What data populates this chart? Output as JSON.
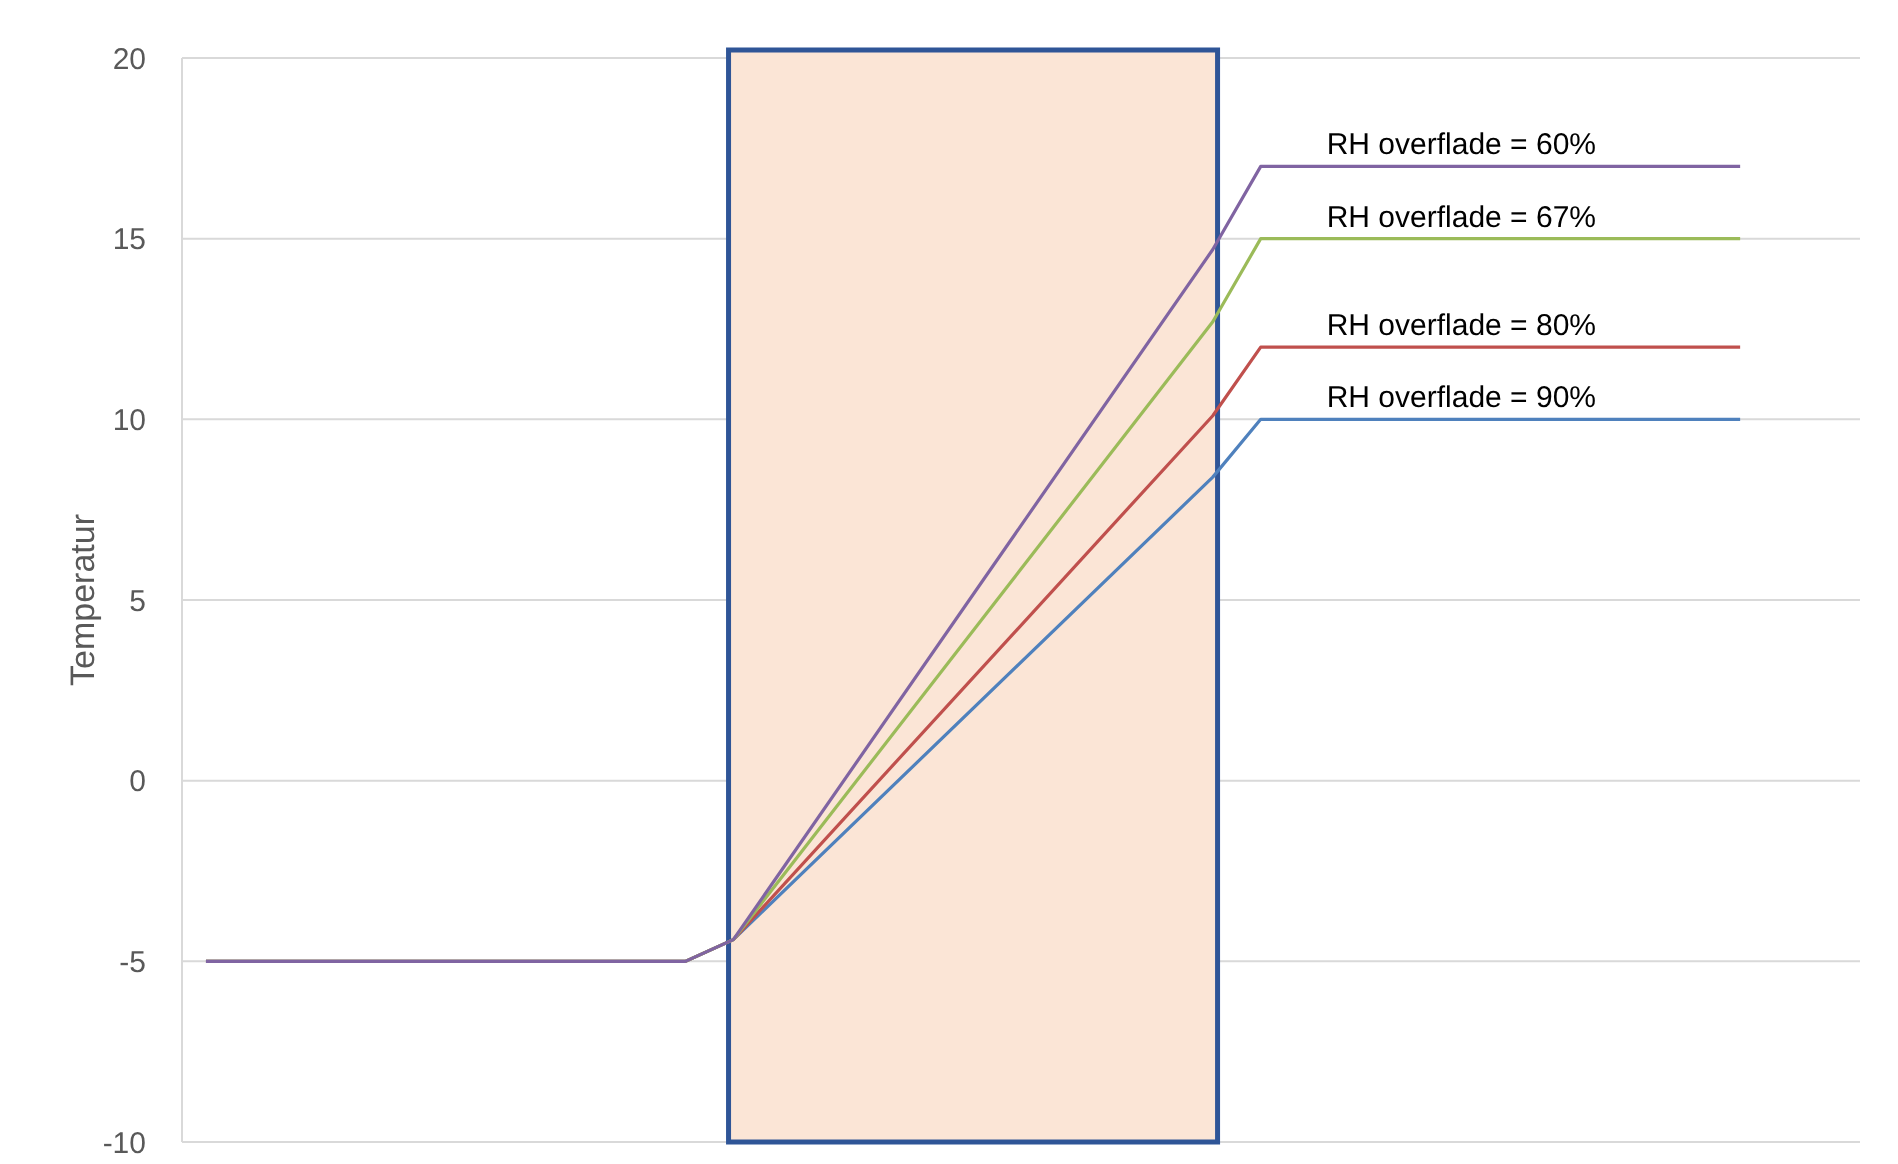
{
  "chart_data": {
    "type": "line",
    "ylabel": "Temperatur",
    "categories": [
      null,
      null,
      null,
      null,
      null,
      null,
      null,
      null,
      null,
      null,
      null,
      null,
      null,
      null,
      null,
      null,
      null,
      null,
      null,
      null,
      null,
      null,
      null,
      null,
      null,
      null,
      null,
      null,
      null,
      null,
      null,
      null,
      null,
      null,
      null
    ],
    "ylim": [
      -10,
      20
    ],
    "yticks": [
      -10,
      -5,
      0,
      5,
      10,
      15,
      20
    ],
    "grid": "y",
    "series": [
      {
        "name": "RH overflade = 90%",
        "color": "#4f81bd",
        "values": [
          -5,
          null,
          null,
          null,
          null,
          null,
          null,
          null,
          null,
          null,
          -5,
          -4.4,
          null,
          null,
          null,
          null,
          null,
          null,
          null,
          null,
          null,
          8.4,
          10,
          null,
          null,
          null,
          null,
          null,
          null,
          null,
          null,
          null,
          10,
          null,
          null
        ]
      },
      {
        "name": "RH overflade = 80%",
        "color": "#c0504d",
        "values": [
          -5,
          null,
          null,
          null,
          null,
          null,
          null,
          null,
          null,
          null,
          -5,
          -4.4,
          null,
          null,
          null,
          null,
          null,
          null,
          null,
          null,
          null,
          10.1,
          12,
          null,
          null,
          null,
          null,
          null,
          null,
          null,
          null,
          null,
          12,
          null,
          null
        ]
      },
      {
        "name": "RH overflade = 67%",
        "color": "#9bbb59",
        "values": [
          -5,
          null,
          null,
          null,
          null,
          null,
          null,
          null,
          null,
          null,
          -5,
          -4.4,
          null,
          null,
          null,
          null,
          null,
          null,
          null,
          null,
          null,
          12.7,
          15,
          null,
          null,
          null,
          null,
          null,
          null,
          null,
          null,
          null,
          15,
          null,
          null
        ]
      },
      {
        "name": "RH overflade = 60%",
        "color": "#8064a2",
        "values": [
          -5,
          null,
          null,
          null,
          null,
          null,
          null,
          null,
          null,
          null,
          -5,
          -4.4,
          null,
          null,
          null,
          null,
          null,
          null,
          null,
          null,
          null,
          14.7,
          17,
          null,
          null,
          null,
          null,
          null,
          null,
          null,
          null,
          null,
          17,
          null,
          null
        ]
      }
    ]
  }
}
